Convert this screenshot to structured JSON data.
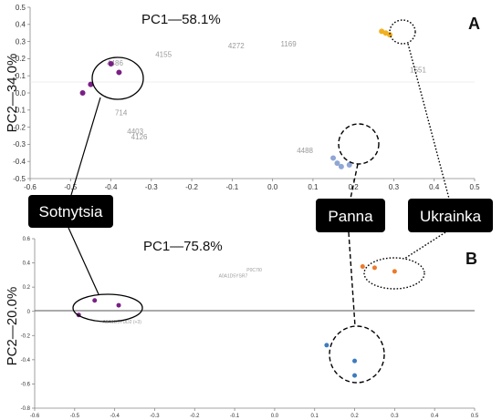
{
  "chart_data": [
    {
      "panel": "A",
      "type": "scatter",
      "variance_label": "PC1—58.1%",
      "ylabel": "PC2—34.0%",
      "xlim": [
        -0.6,
        0.5
      ],
      "ylim": [
        -0.5,
        0.5
      ],
      "xticks": [
        "-0.6",
        "-0.5",
        "-0.4",
        "-0.3",
        "-0.2",
        "-0.1",
        "0.0",
        "0.1",
        "0.2",
        "0.3",
        "0.4",
        "0.5"
      ],
      "yticks": [
        "0.5",
        "0.4",
        "0.3",
        "0.2",
        "0.1",
        "0.0",
        "-0.1",
        "-0.2",
        "-0.3",
        "-0.4",
        "-0.5"
      ],
      "series": [
        {
          "name": "Sotnytsia",
          "color": "#7a1f86",
          "points": [
            [
              -0.4,
              0.17
            ],
            [
              -0.38,
              0.12
            ],
            [
              -0.45,
              0.05
            ],
            [
              -0.47,
              0.0
            ]
          ]
        },
        {
          "name": "Panna",
          "color": "#8fa6d6",
          "points": [
            [
              0.15,
              -0.38
            ],
            [
              0.17,
              -0.43
            ],
            [
              0.16,
              -0.41
            ],
            [
              0.19,
              -0.42
            ]
          ]
        },
        {
          "name": "Ukrainka",
          "color": "#f2b01e",
          "points": [
            [
              0.27,
              0.36
            ],
            [
              0.28,
              0.35
            ],
            [
              0.29,
              0.34
            ]
          ]
        }
      ],
      "locus_labels": [
        {
          "text": "4155",
          "x": -0.29,
          "y": 0.21
        },
        {
          "text": "4272",
          "x": -0.11,
          "y": 0.26
        },
        {
          "text": "1169",
          "x": 0.02,
          "y": 0.27
        },
        {
          "text": "4486",
          "x": -0.41,
          "y": 0.16
        },
        {
          "text": "4126",
          "x": -0.35,
          "y": -0.27
        },
        {
          "text": "4403",
          "x": -0.36,
          "y": -0.24
        },
        {
          "text": "714",
          "x": -0.39,
          "y": -0.13
        },
        {
          "text": "4488",
          "x": 0.06,
          "y": -0.35
        },
        {
          "text": "1551",
          "x": 0.34,
          "y": 0.12
        }
      ]
    },
    {
      "panel": "B",
      "type": "scatter",
      "variance_label": "PC1—75.8%",
      "ylabel": "PC2—20.0%",
      "xlim": [
        -0.6,
        0.5
      ],
      "ylim": [
        -0.8,
        0.6
      ],
      "xticks": [
        "-0.6",
        "-0.5",
        "-0.4",
        "-0.3",
        "-0.2",
        "-0.1",
        "0.0",
        "0.1",
        "0.2",
        "0.3",
        "0.4",
        "0.5"
      ],
      "yticks": [
        "0.6",
        "0.4",
        "0.2",
        "0",
        "-0.2",
        "-0.4",
        "-0.6",
        "-0.8"
      ],
      "series": [
        {
          "name": "Sotnytsia",
          "color": "#7a1f86",
          "points": [
            [
              -0.45,
              0.09
            ],
            [
              -0.39,
              0.05
            ],
            [
              -0.49,
              -0.03
            ]
          ]
        },
        {
          "name": "Panna",
          "color": "#3d7bbf",
          "points": [
            [
              0.13,
              -0.28
            ],
            [
              0.2,
              -0.41
            ],
            [
              0.2,
              -0.53
            ]
          ]
        },
        {
          "name": "Ukrainka",
          "color": "#ec7a2a",
          "points": [
            [
              0.22,
              0.37
            ],
            [
              0.25,
              0.36
            ],
            [
              0.3,
              0.33
            ]
          ]
        }
      ],
      "locus_labels": [
        {
          "text": "A0A1D5YSR7",
          "x": -0.14,
          "y": 0.28
        },
        {
          "text": "P0C7I0",
          "x": -0.07,
          "y": 0.33
        },
        {
          "text": "A0A1D5YUD2 (+3)",
          "x": -0.43,
          "y": -0.1
        }
      ]
    }
  ],
  "callouts": {
    "sotnytsia": "Sotnytsia",
    "panna": "Panna",
    "ukrainka": "Ukrainka"
  }
}
